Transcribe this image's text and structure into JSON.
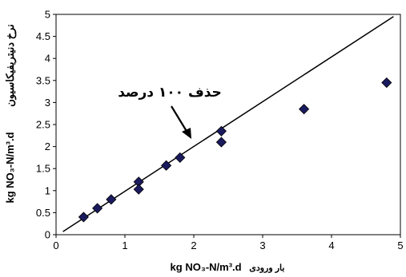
{
  "chart_data": {
    "type": "scatter",
    "xlim": [
      0,
      5
    ],
    "ylim": [
      0,
      5
    ],
    "x_ticks": [
      "0",
      "1",
      "2",
      "3",
      "4",
      "5"
    ],
    "y_ticks": [
      "0",
      "0.5",
      "1",
      "1.5",
      "2",
      "2.5",
      "3",
      "3.5",
      "4",
      "4.5",
      "5"
    ],
    "xlabel_unit": "kg NO₃-N/m³.d",
    "xlabel_text": "بار ورودی",
    "ylabel_unit": "kg NO₃-N/m³.d",
    "ylabel_text": "نرخ دنیتریفیکاسیون",
    "annotation": "حذف ۱۰۰ درصد",
    "reference_line": {
      "from": [
        0.1,
        0.07
      ],
      "to": [
        4.9,
        4.95
      ]
    },
    "marker": "diamond",
    "marker_color": "#1a1a5e",
    "points": [
      {
        "x": 0.4,
        "y": 0.4
      },
      {
        "x": 0.6,
        "y": 0.6
      },
      {
        "x": 0.8,
        "y": 0.8
      },
      {
        "x": 1.2,
        "y": 1.2
      },
      {
        "x": 1.2,
        "y": 1.03
      },
      {
        "x": 1.6,
        "y": 1.57
      },
      {
        "x": 1.8,
        "y": 1.75
      },
      {
        "x": 2.4,
        "y": 2.35
      },
      {
        "x": 2.4,
        "y": 2.1
      },
      {
        "x": 3.6,
        "y": 2.85
      },
      {
        "x": 4.8,
        "y": 3.45
      }
    ]
  }
}
